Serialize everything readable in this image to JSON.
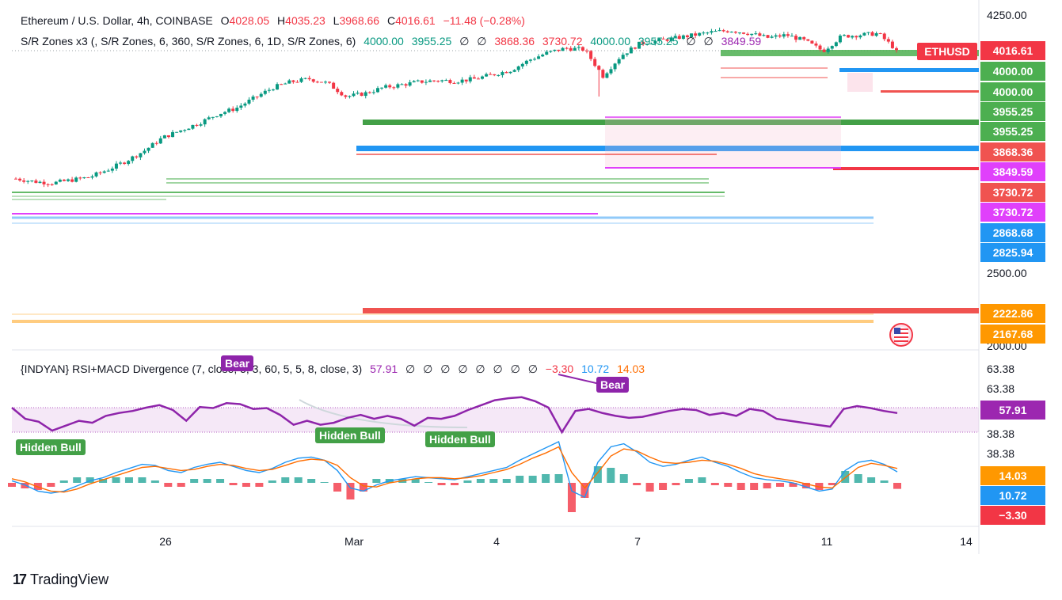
{
  "header": {
    "symbol": "Ethereum / U.S. Dollar, 4h, COINBASE",
    "o_label": "O",
    "o": "4028.05",
    "h_label": "H",
    "h": "4035.23",
    "l_label": "L",
    "l": "3968.66",
    "c_label": "C",
    "c": "4016.61",
    "change": "−11.48 (−0.28%)",
    "sr_title": "S/R Zones x3 (, S/R Zones, 6, 360, S/R Zones, 6, 1D, S/R Zones, 6)",
    "sr_values": [
      "4000.00",
      "3955.25",
      "∅",
      "∅",
      "3868.36",
      "3730.72",
      "4000.00",
      "3955.25",
      "∅",
      "∅",
      "3849.59"
    ],
    "rsi_title": "{INDYAN} RSI+MACD Divergence (7, close, 5, 3, 60, 5, 5, 8, close, 3)",
    "rsi_value": "57.91",
    "rsi_empty": [
      "∅",
      "∅",
      "∅",
      "∅",
      "∅",
      "∅",
      "∅",
      "∅"
    ],
    "macd_values": [
      "−3.30",
      "10.72",
      "14.03"
    ]
  },
  "ticker_tag": "ETHUSD",
  "price_axis": [
    "4250.00",
    "2500.00",
    "2000.00"
  ],
  "price_tags": [
    {
      "label": "4016.61",
      "color": "#f23645"
    },
    {
      "label": "4000.00",
      "color": "#4caf50"
    },
    {
      "label": "4000.00",
      "color": "#4caf50"
    },
    {
      "label": "3955.25",
      "color": "#4caf50"
    },
    {
      "label": "3955.25",
      "color": "#4caf50"
    },
    {
      "label": "3868.36",
      "color": "#f05350"
    },
    {
      "label": "3849.59",
      "color": "#e040fb"
    },
    {
      "label": "3730.72",
      "color": "#f05350"
    },
    {
      "label": "3730.72",
      "color": "#e040fb"
    },
    {
      "label": "2868.68",
      "color": "#2196f3"
    },
    {
      "label": "2825.94",
      "color": "#2196f3"
    },
    {
      "label": "2222.86",
      "color": "#ff9800"
    },
    {
      "label": "2167.68",
      "color": "#ff9800"
    }
  ],
  "osc_axis": [
    "63.38",
    "63.38",
    "38.38",
    "38.38"
  ],
  "osc_tags": [
    {
      "label": "57.91",
      "color": "#9c27b0"
    },
    {
      "label": "14.03",
      "color": "#ff9800"
    },
    {
      "label": "10.72",
      "color": "#2196f3"
    },
    {
      "label": "−3.30",
      "color": "#f23645"
    }
  ],
  "dates": [
    "26",
    "Mar",
    "4",
    "7",
    "11",
    "14"
  ],
  "badges": [
    {
      "label": "Bear",
      "color": "#8e24aa"
    },
    {
      "label": "Bear",
      "color": "#8e24aa"
    },
    {
      "label": "Hidden Bull",
      "color": "#43a047"
    },
    {
      "label": "Hidden Bull",
      "color": "#43a047"
    },
    {
      "label": "Hidden Bull",
      "color": "#43a047"
    }
  ],
  "brand": "TradingView",
  "chart_data": {
    "type": "candlestick",
    "title": "Ethereum / U.S. Dollar, 4h, COINBASE",
    "ylim": [
      2000,
      4300
    ],
    "close_path": [
      3140,
      3120,
      3110,
      3130,
      3150,
      3200,
      3260,
      3330,
      3420,
      3470,
      3520,
      3580,
      3620,
      3690,
      3760,
      3800,
      3820,
      3790,
      3700,
      3720,
      3760,
      3780,
      3800,
      3810,
      3805,
      3820,
      3850,
      3880,
      3950,
      4000,
      4030,
      4020,
      3840,
      3980,
      4060,
      4080,
      4100,
      4120,
      4140,
      4150,
      4130,
      4100,
      4120,
      4080,
      4010,
      4110,
      4120,
      4130,
      4016.61
    ],
    "sr_levels": [
      4000.0,
      3955.25,
      3868.36,
      3849.59,
      3730.72,
      2868.68,
      2825.94,
      2222.86,
      2167.68
    ],
    "rsi": {
      "value": 57.91,
      "upper": 63.38,
      "lower": 38.38
    },
    "macd": {
      "histogram": -3.3,
      "macd": 10.72,
      "signal": 14.03
    }
  }
}
